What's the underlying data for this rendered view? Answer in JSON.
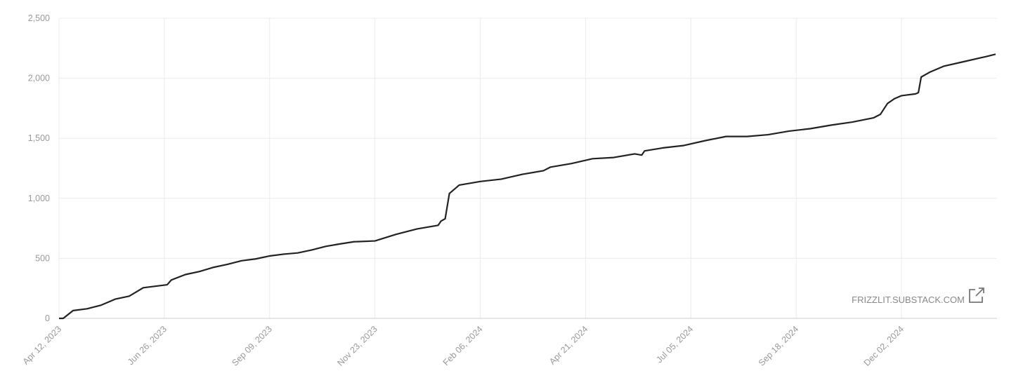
{
  "chart_data": {
    "type": "line",
    "watermark": "FRIZZLIT.SUBSTACK.COM",
    "x": [
      "2023-04-12",
      "2023-04-15",
      "2023-04-22",
      "2023-05-02",
      "2023-05-12",
      "2023-05-22",
      "2023-06-01",
      "2023-06-11",
      "2023-06-21",
      "2023-06-28",
      "2023-07-01",
      "2023-07-11",
      "2023-07-21",
      "2023-07-31",
      "2023-08-10",
      "2023-08-20",
      "2023-08-30",
      "2023-09-09",
      "2023-09-19",
      "2023-09-29",
      "2023-10-09",
      "2023-10-19",
      "2023-10-29",
      "2023-11-08",
      "2023-11-23",
      "2023-12-08",
      "2023-12-23",
      "2024-01-07",
      "2024-01-09",
      "2024-01-12",
      "2024-01-15",
      "2024-01-22",
      "2024-02-06",
      "2024-02-21",
      "2024-03-07",
      "2024-03-22",
      "2024-03-27",
      "2024-04-11",
      "2024-04-26",
      "2024-05-11",
      "2024-05-26",
      "2024-05-31",
      "2024-06-02",
      "2024-06-15",
      "2024-06-30",
      "2024-07-15",
      "2024-07-30",
      "2024-08-14",
      "2024-08-29",
      "2024-09-13",
      "2024-09-28",
      "2024-10-13",
      "2024-10-28",
      "2024-11-12",
      "2024-11-17",
      "2024-11-22",
      "2024-11-27",
      "2024-12-02",
      "2024-12-12",
      "2024-12-14",
      "2024-12-16",
      "2024-12-22",
      "2025-01-01",
      "2025-01-16",
      "2025-01-31",
      "2025-02-07"
    ],
    "series": [
      {
        "color": "#222222",
        "values": [
          0,
          0,
          65,
          80,
          110,
          160,
          185,
          255,
          270,
          280,
          320,
          365,
          390,
          425,
          450,
          480,
          495,
          520,
          535,
          545,
          570,
          600,
          620,
          638,
          645,
          700,
          745,
          775,
          810,
          830,
          1040,
          1110,
          1140,
          1160,
          1200,
          1230,
          1260,
          1290,
          1330,
          1340,
          1370,
          1360,
          1395,
          1420,
          1440,
          1480,
          1515,
          1515,
          1530,
          1560,
          1580,
          1610,
          1635,
          1670,
          1700,
          1790,
          1830,
          1855,
          1870,
          1880,
          2010,
          2050,
          2100,
          2140,
          2180,
          2200
        ]
      }
    ],
    "xlim": [
      "2023-04-12",
      "2025-02-08"
    ],
    "xticks": [
      {
        "value": "2023-04-12",
        "label": "Apr 12, 2023"
      },
      {
        "value": "2023-06-26",
        "label": "Jun 26, 2023"
      },
      {
        "value": "2023-09-09",
        "label": "Sep 09, 2023"
      },
      {
        "value": "2023-11-23",
        "label": "Nov 23, 2023"
      },
      {
        "value": "2024-02-06",
        "label": "Feb 06, 2024"
      },
      {
        "value": "2024-04-21",
        "label": "Apr 21, 2024"
      },
      {
        "value": "2024-07-05",
        "label": "Jul 05, 2024"
      },
      {
        "value": "2024-09-18",
        "label": "Sep 18, 2024"
      },
      {
        "value": "2024-12-02",
        "label": "Dec 02, 2024"
      }
    ],
    "ylim": [
      0,
      2500
    ],
    "yticks": [
      0,
      500,
      {
        "value": 1000,
        "label": "1,000"
      },
      {
        "value": 1500,
        "label": "1,500"
      },
      {
        "value": 2000,
        "label": "2,000"
      },
      {
        "value": 2500,
        "label": "2,500"
      }
    ],
    "grid": true
  }
}
